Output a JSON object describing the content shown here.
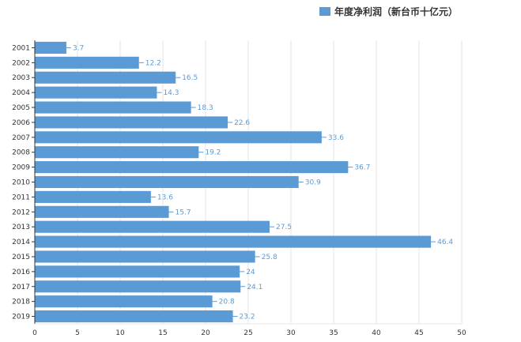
{
  "chart_data": {
    "type": "bar",
    "orientation": "horizontal",
    "categories": [
      "2001",
      "2002",
      "2003",
      "2004",
      "2005",
      "2006",
      "2007",
      "2008",
      "2009",
      "2010",
      "2011",
      "2012",
      "2013",
      "2014",
      "2015",
      "2016",
      "2017",
      "2018",
      "2019"
    ],
    "series": [
      {
        "name": "年度净利润（新台币十亿元）",
        "values": [
          3.7,
          12.2,
          16.5,
          14.3,
          18.3,
          22.6,
          33.6,
          19.2,
          36.7,
          30.9,
          13.6,
          15.7,
          27.5,
          46.4,
          25.8,
          24,
          24.1,
          20.8,
          23.2
        ],
        "value_labels": [
          "3.7",
          "12.2",
          "16.5",
          "14.3",
          "18.3",
          "22.6",
          "33.6",
          "19.2",
          "36.7",
          "30.9",
          "13.6",
          "15.7",
          "27.5",
          "46.4",
          "25.8",
          "24",
          "24.1",
          "20.8",
          "23.2"
        ]
      }
    ],
    "xlim": [
      0,
      50
    ],
    "x_ticks": [
      "0",
      "5",
      "10",
      "15",
      "20",
      "25",
      "30",
      "35",
      "40",
      "45",
      "50"
    ],
    "grid": true,
    "legend_position": "top-right",
    "colors": {
      "bar": "#5b9bd5",
      "label": "#5b9bd5",
      "grid": "#e6e6e6",
      "axis": "#333333"
    }
  }
}
